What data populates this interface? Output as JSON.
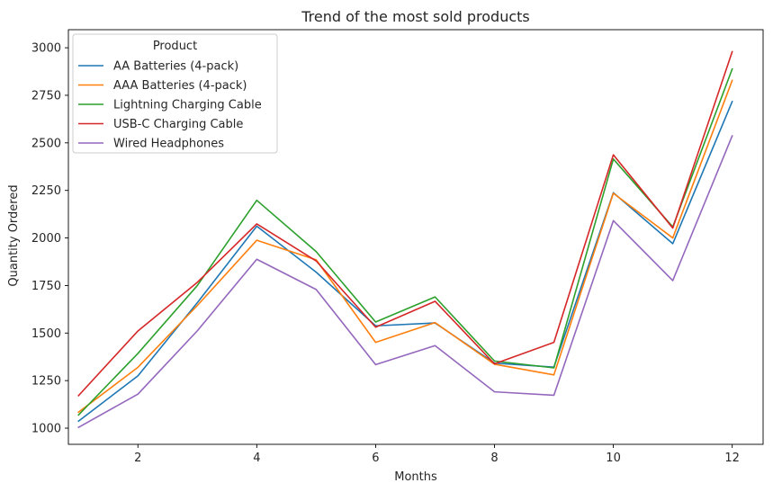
{
  "chart_data": {
    "type": "line",
    "title": "Trend of the most sold products",
    "xlabel": "Months",
    "ylabel": "Quantity Ordered",
    "x": [
      1,
      2,
      3,
      4,
      5,
      6,
      7,
      8,
      9,
      10,
      11,
      12
    ],
    "xlim": [
      0.83,
      12.52
    ],
    "ylim": [
      915,
      3095
    ],
    "xticks": [
      2,
      4,
      6,
      8,
      10,
      12
    ],
    "yticks": [
      1000,
      1250,
      1500,
      1750,
      2000,
      2250,
      2500,
      2750,
      3000
    ],
    "legend": {
      "title": "Product",
      "position": "upper-left"
    },
    "series": [
      {
        "name": "AA Batteries (4-pack)",
        "color": "#1f77b4",
        "values": [
          1037,
          1275,
          1660,
          2062,
          1820,
          1538,
          1553,
          1342,
          1321,
          2238,
          1970,
          2717
        ]
      },
      {
        "name": "AAA Batteries (4-pack)",
        "color": "#ff7f0e",
        "values": [
          1084,
          1320,
          1645,
          1988,
          1885,
          1451,
          1555,
          1336,
          1280,
          2235,
          2000,
          2828
        ]
      },
      {
        "name": "Lightning Charging Cable",
        "color": "#2ca02c",
        "values": [
          1069,
          1393,
          1750,
          2198,
          1928,
          1558,
          1690,
          1353,
          1317,
          2415,
          2058,
          2888
        ]
      },
      {
        "name": "USB-C Charging Cable",
        "color": "#d62728",
        "values": [
          1171,
          1511,
          1767,
          2074,
          1879,
          1531,
          1667,
          1338,
          1451,
          2437,
          2052,
          2979
        ]
      },
      {
        "name": "Wired Headphones",
        "color": "#9467bd",
        "values": [
          1004,
          1179,
          1512,
          1888,
          1729,
          1334,
          1434,
          1191,
          1173,
          2091,
          1776,
          2537
        ]
      }
    ]
  }
}
